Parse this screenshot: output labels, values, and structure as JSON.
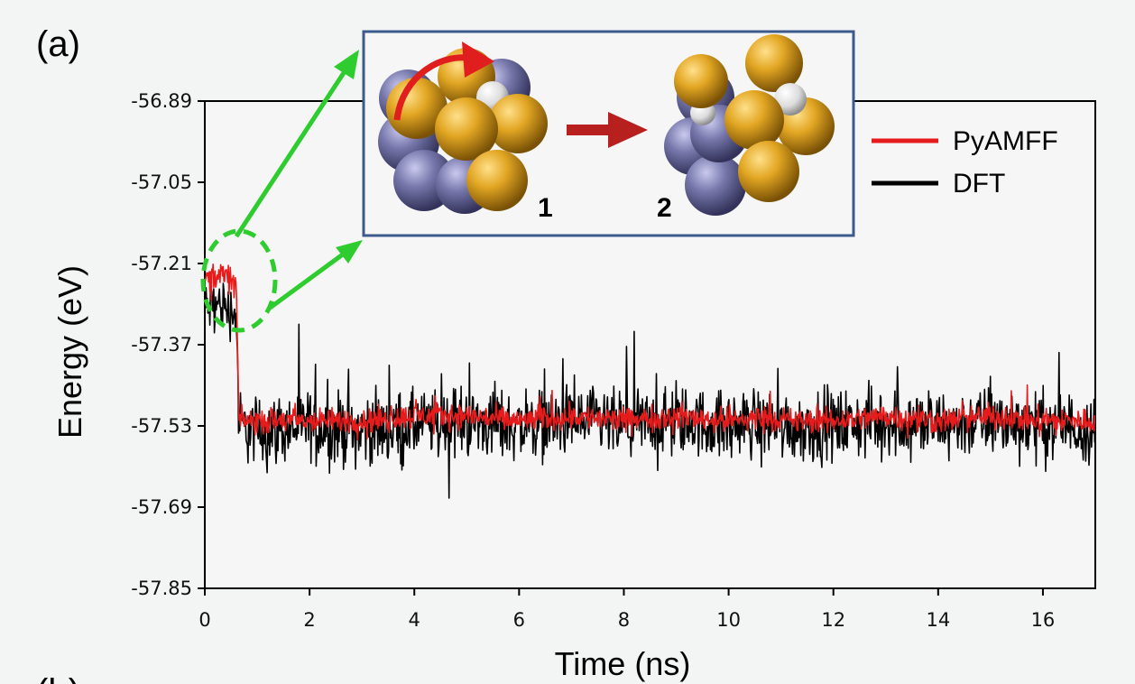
{
  "panel_label": "(a)",
  "next_panel_label": "(b)",
  "inset": {
    "structure_labels": [
      "1",
      "2"
    ],
    "colors": {
      "gold": "#d69a1a",
      "slate": "#6f6fa3",
      "hydrogen": "#e4e4e4",
      "arrow": "#c62020",
      "border": "#3c5a8c"
    }
  },
  "chart_data": {
    "type": "line",
    "title": "",
    "xlabel": "Time (ns)",
    "ylabel": "Energy (eV)",
    "xlim": [
      0,
      17
    ],
    "ylim": [
      -57.85,
      -56.89
    ],
    "xticks": [
      0,
      2,
      4,
      6,
      8,
      10,
      12,
      14,
      16
    ],
    "yticks": [
      -56.89,
      -57.05,
      -57.21,
      -57.37,
      -57.53,
      -57.69,
      -57.85
    ],
    "ytick_labels": [
      "-56.89",
      "-57.05",
      "-57.21",
      "-57.37",
      "-57.53",
      "-57.69",
      "-57.85"
    ],
    "grid": false,
    "legend_position": "top-right",
    "series": [
      {
        "name": "DFT",
        "color": "#000000",
        "x": [
          0,
          0.3,
          0.6,
          0.65,
          1,
          2,
          3,
          4,
          5,
          6,
          7,
          8,
          9,
          10,
          10.8,
          11,
          12,
          13,
          14,
          15,
          16,
          17
        ],
        "y": [
          -57.3,
          -57.29,
          -57.31,
          -57.53,
          -57.54,
          -57.53,
          -57.54,
          -57.53,
          -57.52,
          -57.53,
          -57.52,
          -57.53,
          -57.52,
          -57.53,
          -57.52,
          -57.53,
          -57.53,
          -57.52,
          -57.53,
          -57.52,
          -57.53,
          -57.53
        ],
        "noise_amplitude": [
          0.08,
          0.08,
          0.08,
          0.1,
          0.1,
          0.1,
          0.1,
          0.1,
          0.1,
          0.1,
          0.1,
          0.1,
          0.1,
          0.1,
          0.1,
          0.1,
          0.1,
          0.1,
          0.1,
          0.1,
          0.1,
          0.1
        ]
      },
      {
        "name": "PyAMFF",
        "color": "#e61c1c",
        "x": [
          0,
          0.3,
          0.6,
          0.65,
          1,
          2,
          3,
          4,
          5,
          6,
          7,
          8,
          9,
          10,
          10.8,
          11,
          12,
          13,
          14,
          15,
          16,
          17
        ],
        "y": [
          -57.24,
          -57.23,
          -57.25,
          -57.52,
          -57.52,
          -57.52,
          -57.52,
          -57.51,
          -57.51,
          -57.52,
          -57.51,
          -57.52,
          -57.51,
          -57.52,
          -57.51,
          -57.52,
          -57.52,
          -57.51,
          -57.52,
          -57.51,
          -57.52,
          -57.52
        ],
        "noise_amplitude": [
          0.04,
          0.04,
          0.04,
          0.035,
          0.035,
          0.035,
          0.035,
          0.035,
          0.035,
          0.035,
          0.035,
          0.035,
          0.035,
          0.035,
          0.035,
          0.035,
          0.035,
          0.035,
          0.035,
          0.035,
          0.035,
          0.035
        ]
      }
    ],
    "annotations": [
      {
        "type": "ellipse",
        "x_range": [
          0,
          0.65
        ],
        "y_center": -57.26,
        "color": "#2ecc2e",
        "style": "dashed"
      }
    ]
  }
}
